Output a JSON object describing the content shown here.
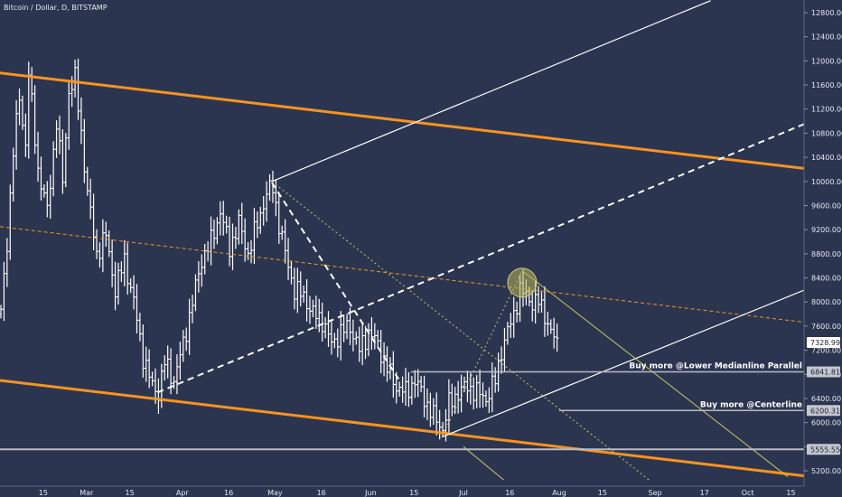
{
  "header": {
    "title": "Bitcoin / Dollar, D, BITSTAMP"
  },
  "colors": {
    "background": "#2b3550",
    "candle": "#ffffff",
    "orange": "#f7931e",
    "white_line": "#ffffff",
    "yellow": "#c8c864",
    "grey_line": "#b9bcc4",
    "axis_text": "#e6e9ef"
  },
  "chart_data": {
    "type": "ohlc",
    "x_axis": {
      "tick_labels": [
        "15",
        "Mar",
        "15",
        "Apr",
        "16",
        "May",
        "16",
        "Jun",
        "15",
        "Jul",
        "16",
        "Aug",
        "15",
        "Sep",
        "17",
        "Oct",
        "15"
      ],
      "tick_days": [
        14,
        28,
        42,
        59,
        74,
        89,
        104,
        120,
        134,
        150,
        165,
        181,
        195,
        212,
        228,
        242,
        256
      ]
    },
    "y_axis": {
      "tick_labels": [
        "5200.00",
        "5600.00",
        "6000.00",
        "6400.00",
        "6800.00",
        "7200.00",
        "7600.00",
        "8000.00",
        "8400.00",
        "8800.00",
        "9200.00",
        "9600.00",
        "10000.00",
        "10400.00",
        "10800.00",
        "11200.00",
        "11600.00",
        "12000.00",
        "12400.00",
        "12800.00"
      ],
      "ylim": [
        5070,
        13000
      ]
    },
    "price_tags": [
      {
        "label": "7328.99",
        "value": 7328.99,
        "style": "last"
      },
      {
        "label": "6841.81",
        "value": 6841.81,
        "style": "grey"
      },
      {
        "label": "6200.31",
        "value": 6200.31,
        "style": "grey"
      },
      {
        "label": "5555.55",
        "value": 5555.55,
        "style": "grey"
      }
    ],
    "annotations": [
      {
        "text": "Buy more @Lower Medianline Parallel",
        "value": 6841.81
      },
      {
        "text": "Buy more @Centerline",
        "value": 6200.31
      }
    ],
    "circle_marker": {
      "day": 169,
      "value": 8320
    },
    "lines": [
      {
        "name": "orange-upper",
        "color": "orange",
        "width": 3,
        "dash": "",
        "p1": [
          0,
          11800
        ],
        "p2": [
          271,
          10150
        ]
      },
      {
        "name": "orange-lower",
        "color": "orange",
        "width": 3,
        "dash": "",
        "p1": [
          0,
          6700
        ],
        "p2": [
          271,
          5050
        ]
      },
      {
        "name": "orange-median",
        "color": "orange",
        "width": 1,
        "dash": "4 3",
        "p1": [
          0,
          9250
        ],
        "p2": [
          271,
          7600
        ]
      },
      {
        "name": "fork-upper",
        "color": "white_line",
        "width": 1.2,
        "dash": "",
        "p1": [
          88,
          10000
        ],
        "p2": [
          230,
          13000
        ]
      },
      {
        "name": "fork-median",
        "color": "white_line",
        "width": 2,
        "dash": "7 5",
        "p1": [
          51,
          6500
        ],
        "p2": [
          271,
          11180
        ]
      },
      {
        "name": "fork-down",
        "color": "white_line",
        "width": 2,
        "dash": "7 5",
        "p1": [
          88,
          9980
        ],
        "p2": [
          129,
          6720
        ]
      },
      {
        "name": "fork-lower",
        "color": "white_line",
        "width": 1.2,
        "dash": "",
        "p1": [
          143,
          5760
        ],
        "p2": [
          271,
          8420
        ]
      },
      {
        "name": "yellow-diag-dotted",
        "color": "yellow",
        "width": 1,
        "dash": "2 3",
        "p1": [
          88,
          10000
        ],
        "p2": [
          210,
          5050
        ]
      },
      {
        "name": "yellow-up-dotted",
        "color": "yellow",
        "width": 1,
        "dash": "2 3",
        "p1": [
          143,
          5760
        ],
        "p2": [
          169,
          8520
        ]
      },
      {
        "name": "yellow-right",
        "color": "yellow",
        "width": 1,
        "dash": "",
        "p1": [
          169,
          8520
        ],
        "p2": [
          255,
          5100
        ]
      },
      {
        "name": "yellow-left",
        "color": "yellow",
        "width": 1,
        "dash": "",
        "p1": [
          150,
          5600
        ],
        "p2": [
          163,
          5050
        ]
      },
      {
        "name": "level-5555",
        "color": "grey_line",
        "width": 2,
        "dash": "",
        "p1": [
          0,
          5555.55
        ],
        "p2": [
          271,
          5555.55
        ]
      },
      {
        "name": "level-6841",
        "color": "grey_line",
        "width": 1.5,
        "dash": "",
        "p1": [
          133,
          6841.81
        ],
        "p2": [
          271,
          6841.81
        ]
      },
      {
        "name": "level-6200",
        "color": "grey_line",
        "width": 1.5,
        "dash": "",
        "p1": [
          181,
          6200.31
        ],
        "p2": [
          271,
          6200.31
        ]
      }
    ],
    "anchors": [
      [
        0,
        7800
      ],
      [
        2,
        9000
      ],
      [
        4,
        10500
      ],
      [
        6,
        11400
      ],
      [
        8,
        10600
      ],
      [
        9,
        11800
      ],
      [
        12,
        10200
      ],
      [
        15,
        9500
      ],
      [
        18,
        11000
      ],
      [
        20,
        10000
      ],
      [
        22,
        11500
      ],
      [
        24,
        11700
      ],
      [
        26,
        10800
      ],
      [
        28,
        9800
      ],
      [
        31,
        8800
      ],
      [
        34,
        9100
      ],
      [
        37,
        8200
      ],
      [
        40,
        8700
      ],
      [
        43,
        8000
      ],
      [
        46,
        7100
      ],
      [
        49,
        6600
      ],
      [
        51,
        6500
      ],
      [
        53,
        7000
      ],
      [
        56,
        6700
      ],
      [
        59,
        7300
      ],
      [
        62,
        8000
      ],
      [
        65,
        8700
      ],
      [
        68,
        9000
      ],
      [
        71,
        9500
      ],
      [
        74,
        8900
      ],
      [
        77,
        9300
      ],
      [
        80,
        8800
      ],
      [
        83,
        9300
      ],
      [
        86,
        9800
      ],
      [
        88,
        9900
      ],
      [
        90,
        9300
      ],
      [
        92,
        8800
      ],
      [
        95,
        8200
      ],
      [
        98,
        8100
      ],
      [
        101,
        7800
      ],
      [
        104,
        7700
      ],
      [
        107,
        7300
      ],
      [
        110,
        7500
      ],
      [
        113,
        7600
      ],
      [
        116,
        7200
      ],
      [
        119,
        7500
      ],
      [
        122,
        7300
      ],
      [
        125,
        6900
      ],
      [
        128,
        6600
      ],
      [
        131,
        6500
      ],
      [
        134,
        6700
      ],
      [
        137,
        6400
      ],
      [
        140,
        6100
      ],
      [
        143,
        5900
      ],
      [
        145,
        6300
      ],
      [
        148,
        6500
      ],
      [
        151,
        6600
      ],
      [
        154,
        6500
      ],
      [
        157,
        6400
      ],
      [
        160,
        6700
      ],
      [
        162,
        7200
      ],
      [
        164,
        7500
      ],
      [
        166,
        7800
      ],
      [
        168,
        8200
      ],
      [
        170,
        8100
      ],
      [
        172,
        8000
      ],
      [
        174,
        8000
      ],
      [
        176,
        7800
      ],
      [
        178,
        7500
      ],
      [
        180,
        7300
      ]
    ]
  }
}
